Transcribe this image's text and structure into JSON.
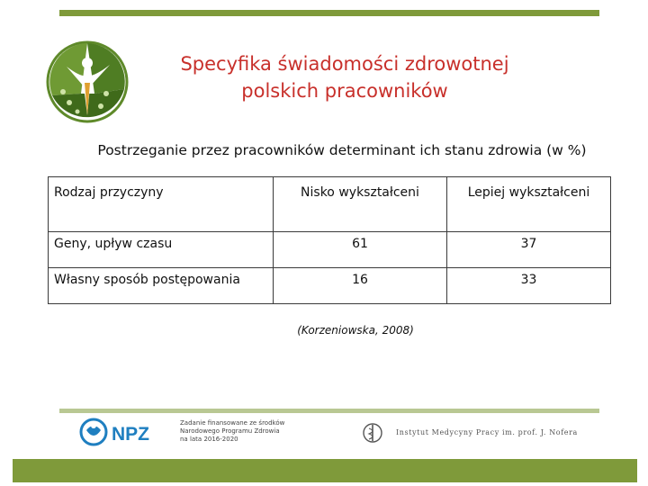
{
  "header": {
    "title_line1": "Specyfika świadomości zdrowotnej",
    "title_line2": "polskich pracowników",
    "logo_icon": "health-figure-logo-icon"
  },
  "subtitle": "Postrzeganie przez pracowników determinant ich stanu zdrowia (w %)",
  "table": {
    "headers": [
      "Rodzaj przyczyny",
      "Nisko wykształceni",
      "Lepiej wykształceni"
    ],
    "rows": [
      [
        "Geny, upływ czasu",
        "61",
        "37"
      ],
      [
        "Własny sposób postępowania",
        "16",
        "33"
      ]
    ]
  },
  "source": "(Korzeniowska, 2008)",
  "footer": {
    "npz_label": "NPZ",
    "npz_caption_line1": "Zadanie finansowane ze środków",
    "npz_caption_line2": "Narodowego Programu Zdrowia",
    "npz_caption_line3": "na lata 2016-2020",
    "institute_name": "Instytut Medycyny Pracy im. prof. J. Nofera",
    "institute_icon": "caduceus-emblem-icon"
  },
  "colors": {
    "accent_green": "#7f9a3a",
    "title_red": "#c8302b",
    "npz_blue": "#1f7fc0"
  }
}
